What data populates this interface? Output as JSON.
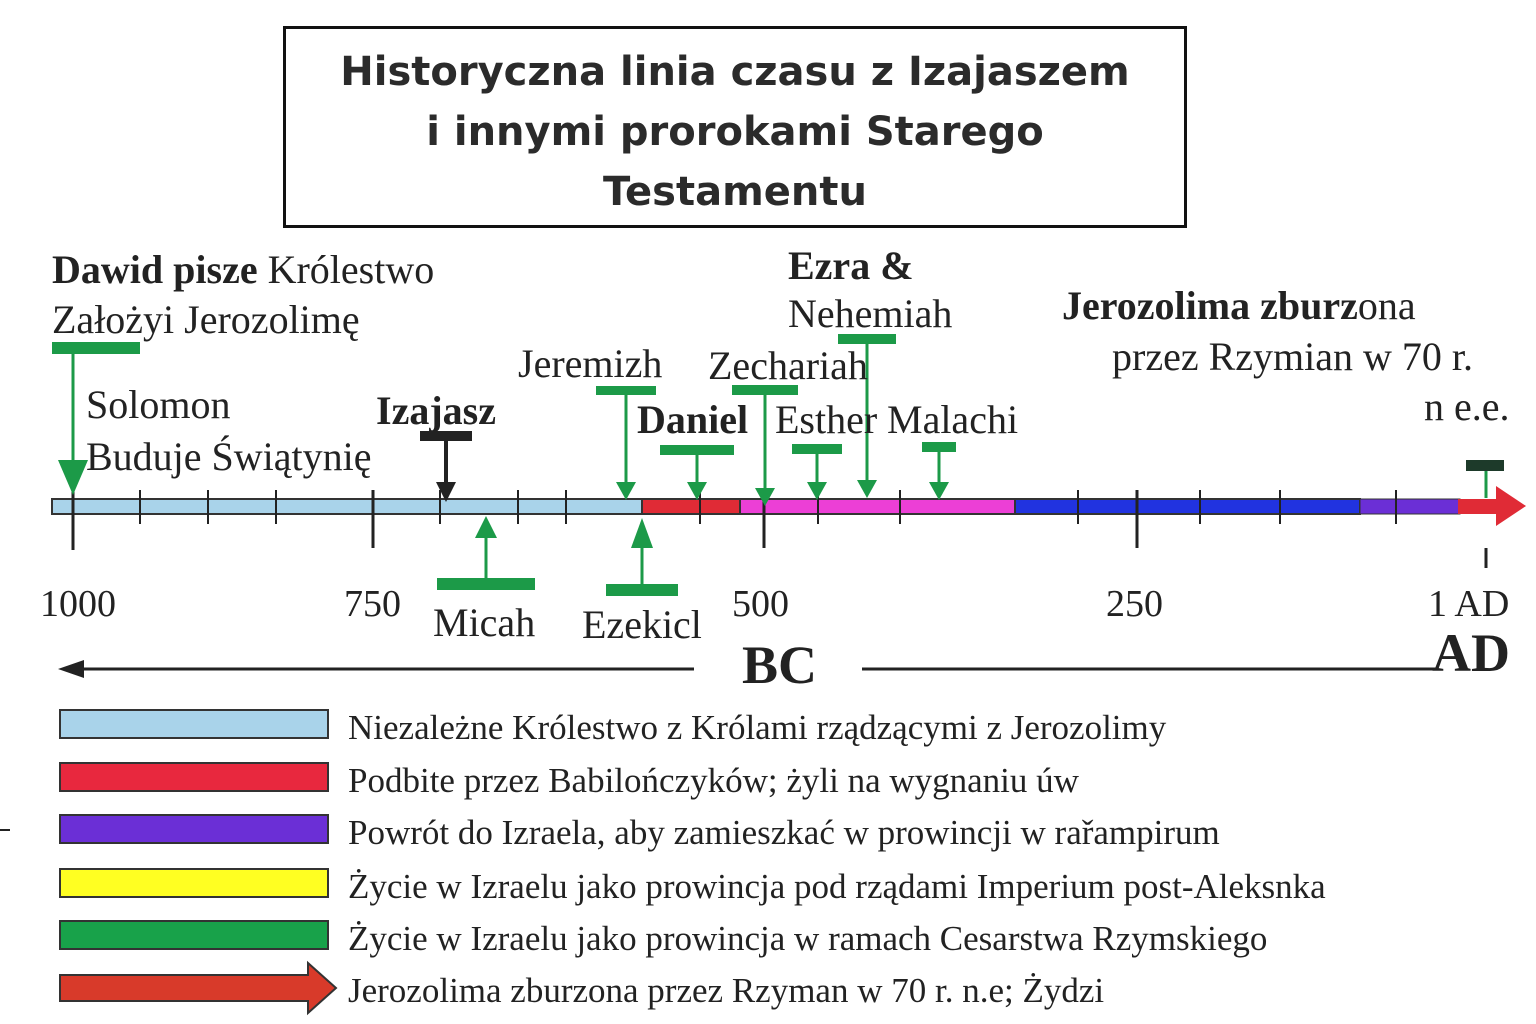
{
  "title": {
    "line1": "Historyczna linia czasu z Izajaszem",
    "line2": "i innymi prorokami Starego",
    "line3": "Testamentu"
  },
  "events": {
    "david": {
      "bold": "Dawid",
      "rest1": " pisze ",
      "rest2": "Królestwo",
      "line2": "Założyi Jerozolimę"
    },
    "solomon": {
      "line1": "Solomon",
      "line2": "Buduje Świątynię"
    },
    "izajasz": "Izajasz",
    "jeremiah": "Jeremizh",
    "daniel": "Daniel",
    "zechariah": "Zechariah",
    "esther": "Esther",
    "malachi": "Malachi",
    "ezra": {
      "line1": "Ezra &",
      "line2": "Nehemiah"
    },
    "jerusalem": {
      "bold1": "Jerozolima zburz",
      "normal1": "ona",
      "line2": "przez Rzymian w 70 r.",
      "line3": "n e.e."
    },
    "micah": "Micah",
    "ezekiel": "Ezekicl"
  },
  "axis": {
    "ticks": [
      "1000",
      "750",
      "500",
      "250",
      "1 AD"
    ],
    "bc_label": "BC",
    "ad_label": "AD"
  },
  "colors": {
    "light_blue": "#a9d3ea",
    "red": "#e02b36",
    "magenta": "#ec3fd6",
    "blue": "#2133e0",
    "purple": "#6b2fd6",
    "green": "#1c9a48",
    "yellow": "#ffff22",
    "dark": "#222222"
  },
  "legend": [
    {
      "color": "#a9d3ea",
      "shape": "bar",
      "label": "Niezależne Królestwo z Królami rządzącymi z Jerozolimy"
    },
    {
      "color": "#e8283e",
      "shape": "bar",
      "label": "Podbite przez Babilończyków; żyli na wygnaniu úw"
    },
    {
      "color": "#6b2fd6",
      "shape": "bar",
      "label": "Powrót do Izraela, aby zamieszkać w prowincji w rařampirum"
    },
    {
      "color": "#ffff22",
      "shape": "bar",
      "label": "Życie w Izraelu jako prowincja pod rządami Imperium post-Aleksnka"
    },
    {
      "color": "#18a24a",
      "shape": "bar",
      "label": "Życie w Izraelu jako prowincja w ramach Cesarstwa Rzymskiego"
    },
    {
      "color": "#d83a2a",
      "shape": "arrow",
      "label": "Jerozolima zburzona przez Rzyman w 70 r. n.e; Żydzi"
    }
  ]
}
